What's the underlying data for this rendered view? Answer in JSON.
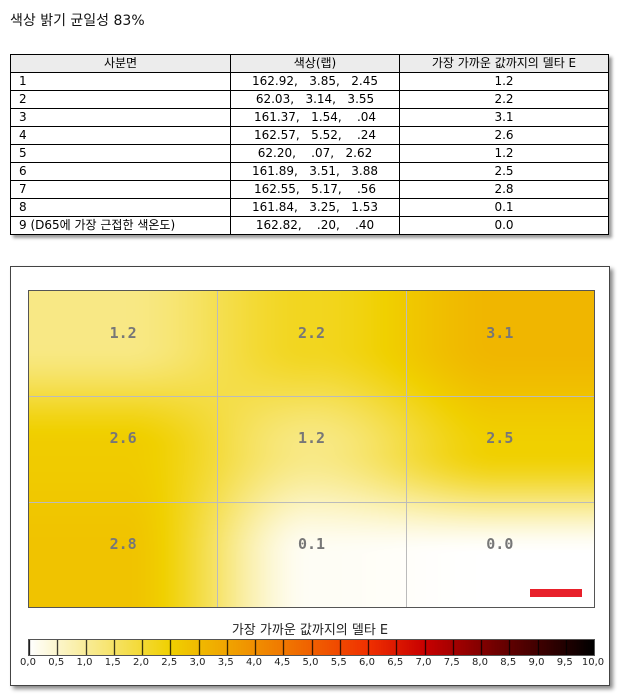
{
  "title": "색상 밝기 균일성 83%",
  "table": {
    "headers": [
      "사분면",
      "색상(랩)",
      "가장 가까운 값까지의 델타 E"
    ],
    "rows": [
      [
        "1",
        "162.92,   3.85,   2.45",
        "1.2"
      ],
      [
        "2",
        "62.03,   3.14,   3.55",
        "2.2"
      ],
      [
        "3",
        "161.37,   1.54,    .04",
        "3.1"
      ],
      [
        "4",
        "162.57,   5.52,    .24",
        "2.6"
      ],
      [
        "5",
        "62.20,    .07,   2.62",
        "1.2"
      ],
      [
        "6",
        "161.89,   3.51,   3.88",
        "2.5"
      ],
      [
        "7",
        "162.55,   5.17,    .56",
        "2.8"
      ],
      [
        "8",
        "161.84,   3.25,   1.53",
        "0.1"
      ],
      [
        "9 (D65에 가장 근접한 색온도)",
        "162.82,    .20,    .40",
        "0.0"
      ]
    ]
  },
  "heatmap": {
    "grid": [
      [
        1.2,
        2.2,
        3.1
      ],
      [
        2.6,
        1.2,
        2.5
      ],
      [
        2.8,
        0.1,
        0.0
      ]
    ],
    "labels": [
      [
        "1.2",
        "2.2",
        "3.1"
      ],
      [
        "2.6",
        "1.2",
        "2.5"
      ],
      [
        "2.8",
        "0.1",
        "0.0"
      ]
    ],
    "marker_color": "#e8202a"
  },
  "legend": {
    "title": "가장 가까운 값까지의 델타 E",
    "ticks": [
      "0,0",
      "0,5",
      "1,0",
      "1,5",
      "2,0",
      "2,5",
      "3,0",
      "3,5",
      "4,0",
      "4,5",
      "5,0",
      "5,5",
      "6,0",
      "6,5",
      "7,0",
      "7,5",
      "8,0",
      "8,5",
      "9,0",
      "9,5",
      "10,0"
    ],
    "range": [
      0,
      10
    ],
    "colors": [
      [
        0,
        "#ffffff"
      ],
      [
        2.5,
        "#f0d000"
      ],
      [
        4.5,
        "#f07800"
      ],
      [
        6,
        "#f03000"
      ],
      [
        7,
        "#c80000"
      ],
      [
        8.5,
        "#600000"
      ],
      [
        10,
        "#000000"
      ]
    ]
  }
}
